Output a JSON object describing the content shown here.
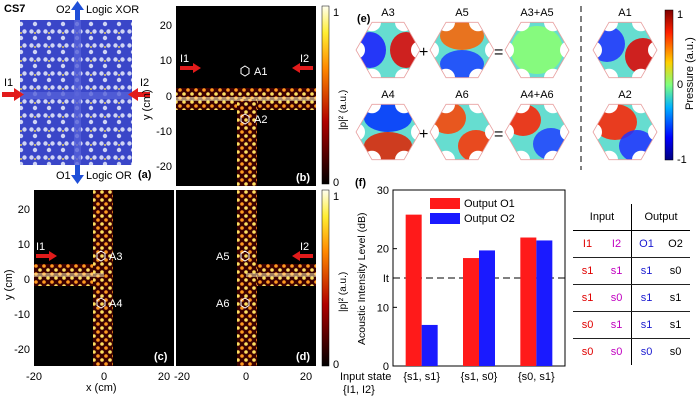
{
  "panel_a": {
    "sample_label": "CS7",
    "top_port": "O2",
    "top_logic": "Logic XOR",
    "bottom_port": "O1",
    "bottom_logic": "Logic OR",
    "left_port": "I1",
    "right_port": "I2",
    "panel_letter": "(a)"
  },
  "field_maps": {
    "b": {
      "letter": "(b)",
      "in_left": "I1",
      "in_right": "I2",
      "marker_top": "A1",
      "marker_bottom": "A2",
      "y_label": "y (cm)",
      "y_ticks": [
        "20",
        "10",
        "0",
        "-10",
        "-20"
      ]
    },
    "c": {
      "letter": "(c)",
      "in_left": "I1",
      "marker_top": "A3",
      "marker_bottom": "A4",
      "y_label": "y (cm)",
      "y_ticks": [
        "20",
        "10",
        "0",
        "-10",
        "-20"
      ],
      "x_label": "x (cm)",
      "x_ticks": [
        "-20",
        "0",
        "20"
      ]
    },
    "d": {
      "letter": "(d)",
      "in_right": "I2",
      "marker_top": "A5",
      "marker_bottom": "A6",
      "x_ticks": [
        "-20",
        "0",
        "20"
      ]
    },
    "colorbar_label": "|p|² (a.u.)",
    "colorbar_ticks": [
      "1",
      "0"
    ]
  },
  "panel_e": {
    "letter": "(e)",
    "top_labels": [
      "A3",
      "A5",
      "A3+A5",
      "A1"
    ],
    "bottom_labels": [
      "A4",
      "A6",
      "A4+A6",
      "A2"
    ],
    "plus": "+",
    "equals": "=",
    "colorbar_label": "Pressure (a.u.)",
    "colorbar_ticks": [
      "1",
      "0",
      "-1"
    ]
  },
  "chart_data": {
    "type": "bar",
    "title": "",
    "panel_letter": "(f)",
    "ylabel": "Acoustic Intensity Level (dB)",
    "xlabel": "Input state {I1, I2}",
    "xlabel_line1": "Input state",
    "xlabel_line2": "{I1, I2}",
    "categories": [
      "{s1, s1}",
      "{s1, s0}",
      "{s0, s1}"
    ],
    "series": [
      {
        "name": "Output O1",
        "color": "#ff1a1a",
        "values": [
          25.8,
          18.4,
          21.9
        ]
      },
      {
        "name": "Output O2",
        "color": "#1a1aff",
        "values": [
          7.0,
          19.7,
          21.4
        ]
      }
    ],
    "ylim": [
      0,
      30
    ],
    "yticks": [
      "0",
      "10",
      "20",
      "30"
    ],
    "threshold_value": 15,
    "threshold_label": "It",
    "legend_position": "top-center"
  },
  "truth_table": {
    "group_headers": [
      "Input",
      "Output"
    ],
    "columns": [
      "I1",
      "I2",
      "O1",
      "O2"
    ],
    "rows": [
      [
        "s1",
        "s1",
        "s1",
        "s0"
      ],
      [
        "s1",
        "s0",
        "s1",
        "s1"
      ],
      [
        "s0",
        "s1",
        "s1",
        "s1"
      ],
      [
        "s0",
        "s0",
        "s0",
        "s0"
      ]
    ]
  },
  "colors": {
    "input_red": "#e00000",
    "i2_magenta": "#c000c0",
    "output_blue": "#1a1ad0",
    "arrow_red": "#e21b1b",
    "arrow_blue": "#1f4fd8"
  }
}
